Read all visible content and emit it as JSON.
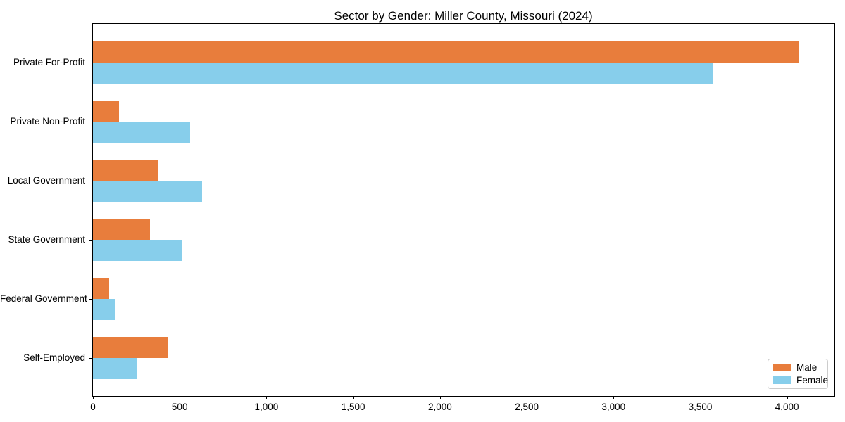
{
  "title": "Sector by Gender: Miller County, Missouri (2024)",
  "chart_data": {
    "type": "bar",
    "orientation": "horizontal",
    "title": "Sector by Gender: Miller County, Missouri (2024)",
    "xlabel": "",
    "ylabel": "",
    "categories": [
      "Private For-Profit",
      "Private Non-Profit",
      "Local Government",
      "State Government",
      "Federal Government",
      "Self-Employed"
    ],
    "series": [
      {
        "name": "Male",
        "color": "#e87d3c",
        "values": [
          4070,
          150,
          375,
          330,
          95,
          430
        ]
      },
      {
        "name": "Female",
        "color": "#87ceeb",
        "values": [
          3570,
          560,
          630,
          510,
          125,
          255
        ]
      }
    ],
    "xlim": [
      0,
      4273
    ],
    "xticks": {
      "values": [
        0,
        500,
        1000,
        1500,
        2000,
        2500,
        3000,
        3500,
        4000
      ],
      "labels": [
        "0",
        "500",
        "1,000",
        "1,500",
        "2,000",
        "2,500",
        "3,000",
        "3,500",
        "4,000"
      ]
    },
    "grid": false,
    "legend": {
      "position": "lower right",
      "items": [
        "Male",
        "Female"
      ]
    }
  }
}
